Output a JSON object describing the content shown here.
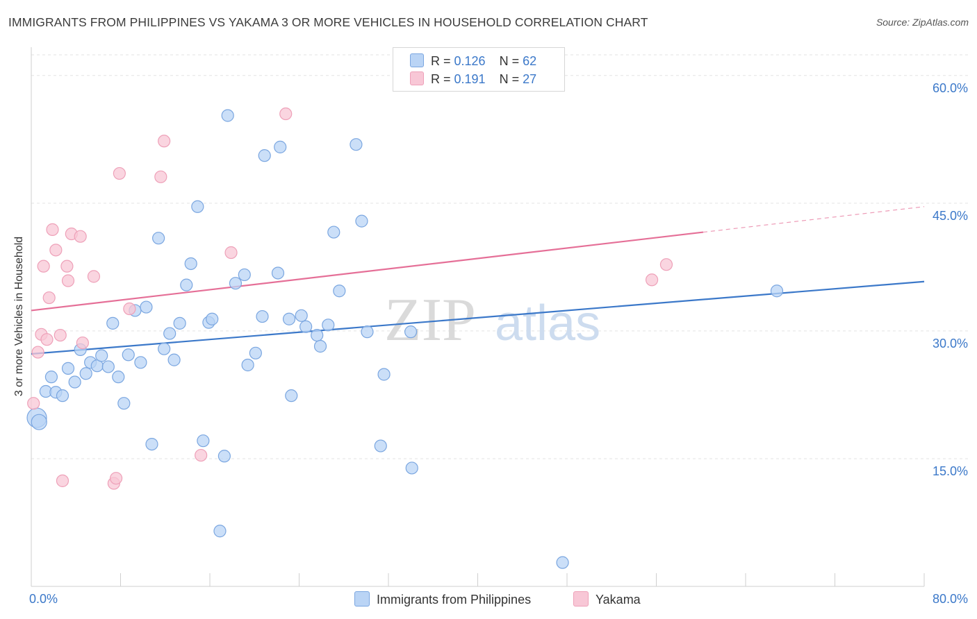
{
  "title": "IMMIGRANTS FROM PHILIPPINES VS YAKAMA 3 OR MORE VEHICLES IN HOUSEHOLD CORRELATION CHART",
  "source": "Source: ZipAtlas.com",
  "watermark": {
    "zip": "ZIP",
    "atlas": "atlas"
  },
  "legend_top": {
    "rows": [
      {
        "r_label": "R = ",
        "r_value": "0.126",
        "n_label": "N = ",
        "n_value": "62"
      },
      {
        "r_label": "R = ",
        "r_value": "0.191",
        "n_label": "N = ",
        "n_value": "27"
      }
    ]
  },
  "legend_bottom": {
    "items": [
      {
        "label": "Immigrants from Philippines"
      },
      {
        "label": "Yakama"
      }
    ]
  },
  "colors": {
    "blue_fill": "#bad4f5",
    "blue_stroke": "#7aa6e0",
    "blue_line": "#3b78c9",
    "pink_fill": "#f8c7d6",
    "pink_stroke": "#eea0b8",
    "pink_line": "#e56f97",
    "axis_text": "#3b78c9",
    "grid": "#e3e3e3"
  },
  "chart_data": {
    "type": "scatter",
    "title": "IMMIGRANTS FROM PHILIPPINES VS YAKAMA 3 OR MORE VEHICLES IN HOUSEHOLD CORRELATION CHART",
    "xlabel": "",
    "ylabel": "3 or more Vehicles in Household",
    "xlim": [
      0,
      80
    ],
    "ylim": [
      0,
      63
    ],
    "x_tick_labels": [
      "0.0%",
      "80.0%"
    ],
    "y_ticks": [
      15,
      30,
      45,
      60
    ],
    "y_tick_labels": [
      "15.0%",
      "30.0%",
      "45.0%",
      "60.0%"
    ],
    "grid": true,
    "legend_position": "top-center",
    "series": [
      {
        "name": "Immigrants from Philippines",
        "R": 0.126,
        "N": 62,
        "trend": {
          "x": [
            0,
            80
          ],
          "y": [
            27.3,
            35.8
          ]
        },
        "points": [
          [
            0.5,
            19.8
          ],
          [
            0.7,
            19.3
          ],
          [
            1.3,
            22.9
          ],
          [
            1.8,
            24.6
          ],
          [
            2.2,
            22.8
          ],
          [
            2.8,
            22.4
          ],
          [
            3.3,
            25.6
          ],
          [
            3.9,
            24.0
          ],
          [
            4.4,
            27.8
          ],
          [
            4.9,
            25.0
          ],
          [
            5.3,
            26.3
          ],
          [
            5.9,
            25.9
          ],
          [
            6.3,
            27.1
          ],
          [
            6.9,
            25.8
          ],
          [
            7.3,
            30.9
          ],
          [
            7.8,
            24.6
          ],
          [
            8.3,
            21.5
          ],
          [
            8.7,
            27.2
          ],
          [
            9.3,
            32.4
          ],
          [
            9.8,
            26.3
          ],
          [
            10.3,
            32.8
          ],
          [
            10.8,
            16.7
          ],
          [
            11.4,
            40.9
          ],
          [
            11.9,
            27.9
          ],
          [
            12.4,
            29.7
          ],
          [
            12.8,
            26.6
          ],
          [
            13.3,
            30.9
          ],
          [
            13.9,
            35.4
          ],
          [
            14.3,
            37.9
          ],
          [
            14.9,
            44.6
          ],
          [
            15.4,
            17.1
          ],
          [
            15.9,
            31.0
          ],
          [
            16.2,
            31.4
          ],
          [
            16.9,
            6.5
          ],
          [
            17.3,
            15.3
          ],
          [
            17.6,
            55.3
          ],
          [
            18.3,
            35.6
          ],
          [
            19.1,
            36.6
          ],
          [
            19.4,
            26.0
          ],
          [
            20.1,
            27.4
          ],
          [
            20.7,
            31.7
          ],
          [
            20.9,
            50.6
          ],
          [
            22.1,
            36.8
          ],
          [
            22.3,
            51.6
          ],
          [
            23.1,
            31.4
          ],
          [
            23.3,
            22.4
          ],
          [
            24.2,
            31.8
          ],
          [
            24.6,
            30.5
          ],
          [
            25.6,
            29.5
          ],
          [
            25.9,
            28.2
          ],
          [
            26.6,
            30.7
          ],
          [
            27.1,
            41.6
          ],
          [
            27.6,
            34.7
          ],
          [
            29.1,
            51.9
          ],
          [
            29.6,
            42.9
          ],
          [
            30.1,
            29.9
          ],
          [
            31.3,
            16.5
          ],
          [
            31.6,
            24.9
          ],
          [
            34.0,
            29.9
          ],
          [
            34.1,
            13.9
          ],
          [
            47.6,
            2.8
          ],
          [
            66.8,
            34.7
          ]
        ]
      },
      {
        "name": "Yakama",
        "R": 0.191,
        "N": 27,
        "trend": {
          "x": [
            0,
            60.2
          ],
          "y": [
            32.4,
            41.6
          ],
          "dashed_to": {
            "x": 80,
            "y": 44.6
          }
        },
        "points": [
          [
            0.2,
            21.5
          ],
          [
            0.6,
            27.5
          ],
          [
            0.9,
            29.6
          ],
          [
            1.1,
            37.6
          ],
          [
            1.4,
            29.0
          ],
          [
            1.6,
            33.9
          ],
          [
            1.9,
            41.9
          ],
          [
            2.2,
            39.5
          ],
          [
            2.6,
            29.5
          ],
          [
            2.8,
            12.4
          ],
          [
            3.2,
            37.6
          ],
          [
            3.3,
            35.9
          ],
          [
            3.6,
            41.4
          ],
          [
            4.4,
            41.1
          ],
          [
            4.6,
            28.6
          ],
          [
            5.6,
            36.4
          ],
          [
            7.4,
            12.1
          ],
          [
            7.6,
            12.7
          ],
          [
            7.9,
            48.5
          ],
          [
            8.8,
            32.6
          ],
          [
            11.6,
            48.1
          ],
          [
            11.9,
            52.3
          ],
          [
            15.2,
            15.4
          ],
          [
            17.9,
            39.2
          ],
          [
            22.8,
            55.5
          ],
          [
            55.6,
            36.0
          ],
          [
            56.9,
            37.8
          ]
        ]
      }
    ]
  }
}
